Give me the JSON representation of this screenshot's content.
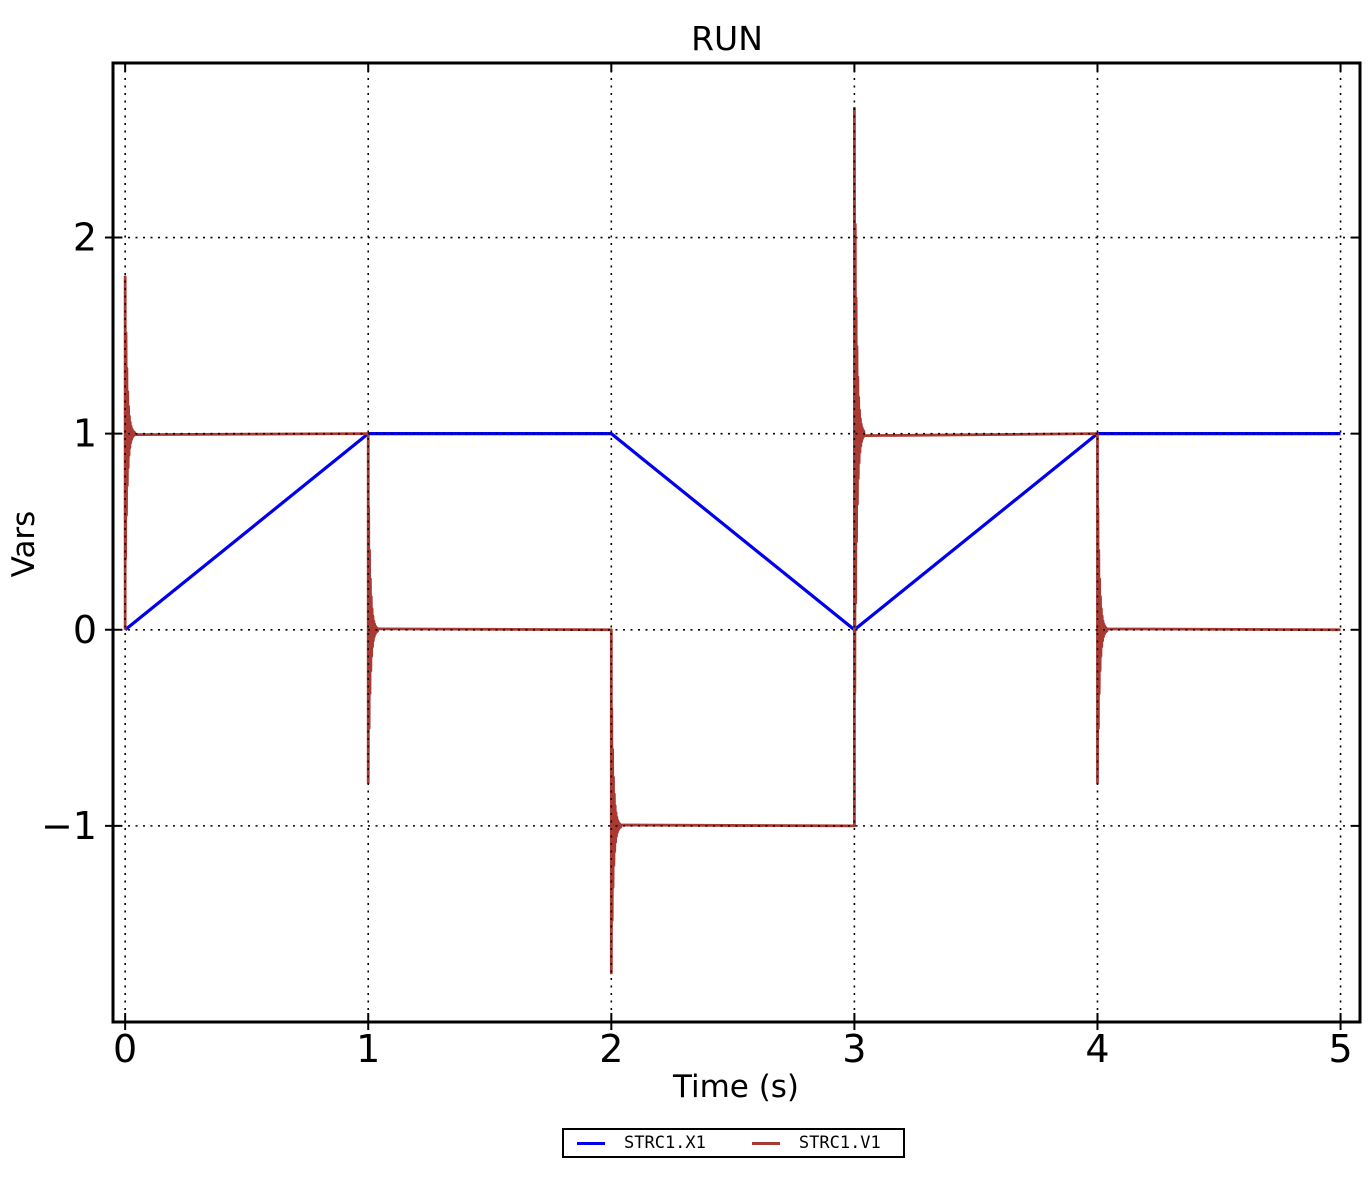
{
  "figure": {
    "background": "#ffffff",
    "frame_color": "#000000"
  },
  "chart_data": {
    "type": "line",
    "title": "RUN",
    "xlabel": "Time (s)",
    "ylabel": "Vars",
    "xlim": [
      -0.05,
      5.08
    ],
    "ylim": [
      -2.0,
      2.89
    ],
    "xticks": [
      0,
      1,
      2,
      3,
      4,
      5
    ],
    "xtick_labels": [
      "0",
      "1",
      "2",
      "3",
      "4",
      "5"
    ],
    "yticks": [
      -1,
      0,
      1,
      2
    ],
    "ytick_labels": [
      "−1",
      "0",
      "1",
      "2"
    ],
    "grid": "dotted",
    "grid_color": "#000000",
    "grid_on_top_of_data": true,
    "legend_position": "bottom-center-outside",
    "series": [
      {
        "name": "STRC1.X1",
        "color": "#0000ee",
        "kind": "polyline",
        "points": [
          [
            0,
            0
          ],
          [
            1,
            1
          ],
          [
            2,
            1
          ],
          [
            3,
            0
          ],
          [
            4,
            1
          ],
          [
            5,
            1
          ]
        ]
      },
      {
        "name": "STRC1.V1",
        "color": "#a93a33",
        "kind": "step_with_transients",
        "steps": [
          {
            "t0": 0,
            "t1": 1,
            "value": 1
          },
          {
            "t0": 1,
            "t1": 2,
            "value": 0
          },
          {
            "t0": 2,
            "t1": 3,
            "value": -1
          },
          {
            "t0": 3,
            "t1": 4,
            "value": 1
          },
          {
            "t0": 4,
            "t1": 5,
            "value": 0
          }
        ],
        "transients": [
          {
            "t": 0,
            "from": 0,
            "settle": 1,
            "peak": 1.8
          },
          {
            "t": 1,
            "from": 1,
            "settle": 0,
            "peak": -0.78
          },
          {
            "t": 2,
            "from": 0,
            "settle": -1,
            "peak": -1.75
          },
          {
            "t": 3,
            "from": -1,
            "settle": 1,
            "peak": 2.66
          },
          {
            "t": 4,
            "from": 1,
            "settle": 0,
            "peak": -0.78
          }
        ]
      }
    ],
    "legend_entries": [
      "STRC1.X1",
      "STRC1.V1"
    ]
  }
}
